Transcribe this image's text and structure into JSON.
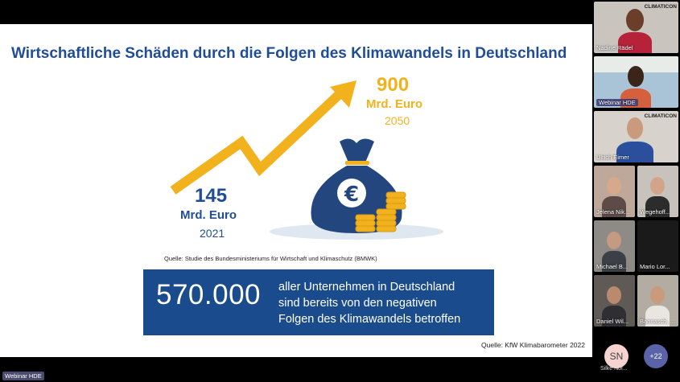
{
  "slide": {
    "title": "Wirtschaftliche Schäden durch die Folgen des Klimawandels in Deutschland",
    "past": {
      "amount": "145",
      "unit": "Mrd. Euro",
      "year": "2021"
    },
    "future": {
      "amount": "900",
      "unit": "Mrd. Euro",
      "year": "2050"
    },
    "source_primary": "Quelle: Studie des Bundesministeriums für Wirtschaft und Klimaschutz (BMWK)",
    "stat_number": "570.000",
    "stat_lines": [
      "aller Unternehmen in Deutschland",
      "sind bereits von den negativen",
      "Folgen des Klimawandels betroffen"
    ],
    "source_secondary": "Quelle: KfW Klimabarometer 2022",
    "colors": {
      "title": "#1f4e96",
      "accent_yellow": "#f2b21e",
      "box_blue": "#1a4b8c",
      "bag_blue": "#24467f"
    }
  },
  "participants": [
    {
      "name": "Nadine Rädel",
      "logo": "CLIMATICON"
    },
    {
      "name": "Webinar HDE"
    },
    {
      "name": "Ulrich Eimer",
      "logo": "CLIMATICON"
    },
    {
      "name": "Jelena Nik..."
    },
    {
      "name": "Wegehoff..."
    },
    {
      "name": "Michael B..."
    },
    {
      "name": "Mario Lor..."
    },
    {
      "name": "Daniel Wil..."
    },
    {
      "name": "Bannasch, ..."
    }
  ],
  "bottom": {
    "label": "Webinar HDE",
    "avatar_initials": "SN",
    "avatar_name": "Silke Nol...",
    "more_count": "+22"
  }
}
